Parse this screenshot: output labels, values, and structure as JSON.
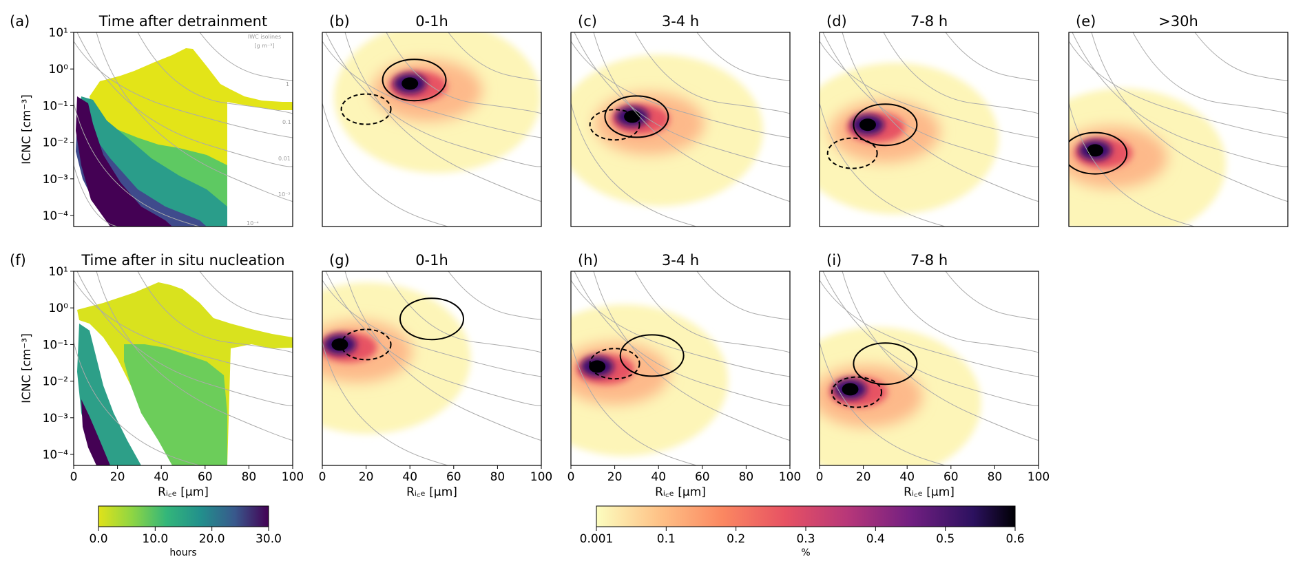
{
  "figure": {
    "hours_cbar": {
      "ticks": [
        "0.0",
        "10.0",
        "20.0",
        "30.0"
      ],
      "label": "hours",
      "range": [
        0,
        30
      ]
    },
    "pct_cbar": {
      "ticks": [
        "0.001",
        "0.1",
        "0.2",
        "0.3",
        "0.4",
        "0.5",
        "0.6"
      ],
      "label": "%",
      "range": [
        0,
        0.6
      ]
    },
    "isoline_legend": {
      "title_line1": "IWC isolines",
      "title_line2": "[g m⁻³]",
      "labels": [
        "1",
        "0.1",
        "0.01",
        "10⁻³",
        "10⁻⁴"
      ]
    }
  },
  "chart_data": [
    {
      "id": "a",
      "panel_label": "(a)",
      "title": "Time after detrainment",
      "type": "heatmap",
      "colormap": "viridis",
      "ylabel": "ICNC [cm⁻³]",
      "xlabel": "",
      "xlim": [
        0,
        100
      ],
      "ylim": [
        5e-05,
        10
      ],
      "yscale": "log",
      "x_ticks": [
        "0",
        "20",
        "40",
        "60",
        "80",
        "100"
      ],
      "y_ticks": [
        "10¹",
        "10⁰",
        "10⁻¹",
        "10⁻²",
        "10⁻³",
        "10⁻⁴"
      ],
      "show_isoline_labels": true
    },
    {
      "id": "b",
      "panel_label": "(b)",
      "title": "0-1h",
      "type": "heatmap",
      "colormap": "magma_r",
      "xlabel": "",
      "xlim": [
        0,
        100
      ],
      "ylim": [
        5e-05,
        10
      ],
      "yscale": "log",
      "peak": {
        "x": 40,
        "y": 0.4,
        "value": 0.6
      },
      "solid_contour_center": {
        "x": 42,
        "y": 0.5
      },
      "dashed_contour_center": {
        "x": 20,
        "y": 0.08
      }
    },
    {
      "id": "c",
      "panel_label": "(c)",
      "title": "3-4 h",
      "type": "heatmap",
      "colormap": "magma_r",
      "xlabel": "",
      "xlim": [
        0,
        100
      ],
      "ylim": [
        5e-05,
        10
      ],
      "yscale": "log",
      "peak": {
        "x": 28,
        "y": 0.05,
        "value": 0.6
      },
      "solid_contour_center": {
        "x": 30,
        "y": 0.05
      },
      "dashed_contour_center": {
        "x": 20,
        "y": 0.03
      }
    },
    {
      "id": "d",
      "panel_label": "(d)",
      "title": "7-8 h",
      "type": "heatmap",
      "colormap": "magma_r",
      "xlabel": "",
      "xlim": [
        0,
        100
      ],
      "ylim": [
        5e-05,
        10
      ],
      "yscale": "log",
      "peak": {
        "x": 22,
        "y": 0.03,
        "value": 0.5
      },
      "solid_contour_center": {
        "x": 30,
        "y": 0.03
      },
      "dashed_contour_center": {
        "x": 15,
        "y": 0.005
      }
    },
    {
      "id": "e",
      "panel_label": "(e)",
      "title": ">30h",
      "type": "heatmap",
      "colormap": "magma_r",
      "xlabel": "",
      "xlim": [
        0,
        100
      ],
      "ylim": [
        5e-05,
        10
      ],
      "yscale": "log",
      "peak": {
        "x": 12,
        "y": 0.006,
        "value": 0.6
      },
      "solid_contour_center": {
        "x": 12,
        "y": 0.005
      }
    },
    {
      "id": "f",
      "panel_label": "(f)",
      "title": "Time after in situ nucleation",
      "type": "heatmap",
      "colormap": "viridis",
      "ylabel": "ICNC [cm⁻³]",
      "xlabel": "Rᵢ꜀ₑ [μm]",
      "xlim": [
        0,
        100
      ],
      "ylim": [
        5e-05,
        10
      ],
      "yscale": "log",
      "x_ticks": [
        "0",
        "20",
        "40",
        "60",
        "80",
        "100"
      ],
      "y_ticks": [
        "10¹",
        "10⁰",
        "10⁻¹",
        "10⁻²",
        "10⁻³",
        "10⁻⁴"
      ]
    },
    {
      "id": "g",
      "panel_label": "(g)",
      "title": "0-1h",
      "type": "heatmap",
      "colormap": "magma_r",
      "xlabel": "Rᵢ꜀ₑ [μm]",
      "xlim": [
        0,
        100
      ],
      "ylim": [
        5e-05,
        10
      ],
      "yscale": "log",
      "x_ticks": [
        "0",
        "20",
        "40",
        "60",
        "80",
        "100"
      ],
      "peak": {
        "x": 8,
        "y": 0.1,
        "value": 0.6
      },
      "solid_contour_center": {
        "x": 50,
        "y": 0.5
      },
      "dashed_contour_center": {
        "x": 20,
        "y": 0.1
      }
    },
    {
      "id": "h",
      "panel_label": "(h)",
      "title": "3-4 h",
      "type": "heatmap",
      "colormap": "magma_r",
      "xlabel": "Rᵢ꜀ₑ [μm]",
      "xlim": [
        0,
        100
      ],
      "ylim": [
        5e-05,
        10
      ],
      "yscale": "log",
      "x_ticks": [
        "0",
        "20",
        "40",
        "60",
        "80",
        "100"
      ],
      "peak": {
        "x": 12,
        "y": 0.025,
        "value": 0.6
      },
      "solid_contour_center": {
        "x": 37,
        "y": 0.05
      },
      "dashed_contour_center": {
        "x": 20,
        "y": 0.03
      }
    },
    {
      "id": "i",
      "panel_label": "(i)",
      "title": "7-8 h",
      "type": "heatmap",
      "colormap": "magma_r",
      "xlabel": "Rᵢ꜀ₑ [μm]",
      "xlim": [
        0,
        100
      ],
      "ylim": [
        5e-05,
        10
      ],
      "yscale": "log",
      "x_ticks": [
        "0",
        "20",
        "40",
        "60",
        "80",
        "100"
      ],
      "peak": {
        "x": 14,
        "y": 0.006,
        "value": 0.6
      },
      "solid_contour_center": {
        "x": 30,
        "y": 0.03
      },
      "dashed_contour_center": {
        "x": 17,
        "y": 0.005
      }
    }
  ]
}
